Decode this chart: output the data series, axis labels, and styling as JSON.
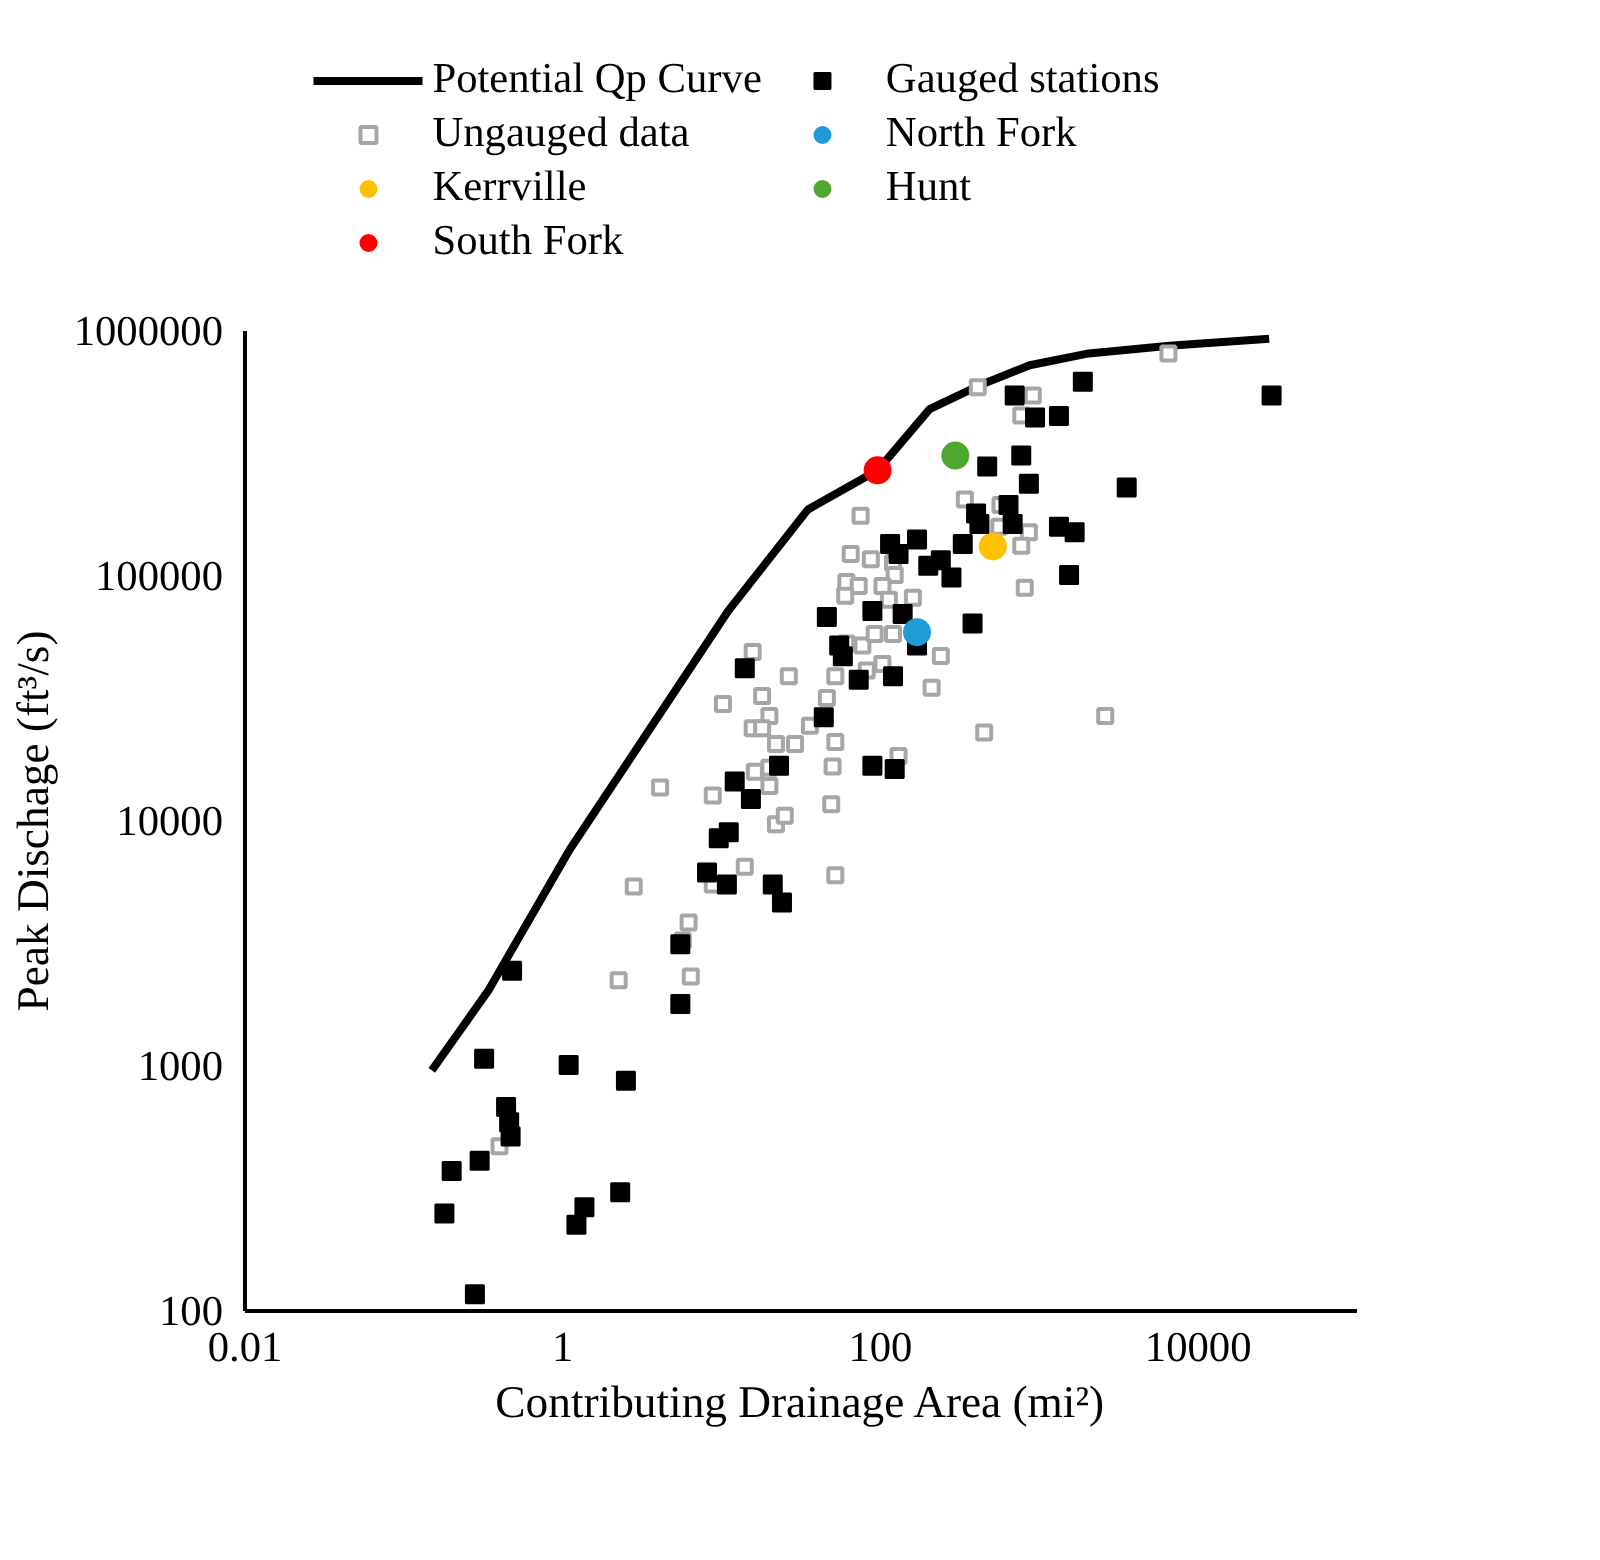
{
  "chart_data": {
    "type": "scatter",
    "xlabel": "Contributing Drainage Area (mi²)",
    "ylabel": "Peak Dischage (ft³/s)",
    "log": "xy",
    "xlim": [
      0.01,
      100000
    ],
    "ylim": [
      100,
      1000000
    ],
    "xticks": [
      0.01,
      1,
      100,
      10000
    ],
    "yticks": [
      100,
      1000,
      10000,
      100000,
      1000000
    ],
    "grid": false,
    "legend": "top",
    "series": [
      {
        "name": "Potential Qp Curve",
        "type": "line",
        "color": "#000000",
        "marker": "none",
        "line_style": "solid",
        "x": [
          0.15,
          0.34,
          1.1,
          3.5,
          11,
          35,
          96,
          204,
          420,
          870,
          2050,
          6600,
          28000
        ],
        "values": [
          960,
          2030,
          7600,
          23500,
          72000,
          187000,
          270000,
          480000,
          600000,
          725000,
          810000,
          870000,
          930000
        ]
      },
      {
        "name": "Ungauged data",
        "color": "#a6a6a6",
        "marker": "square_hollow",
        "x": [
          10.2,
          18,
          20,
          15.7,
          18,
          22,
          29,
          36,
          46,
          52,
          16.2,
          20,
          20,
          8.8,
          4.1,
          50,
          49,
          22,
          25,
          14,
          8.8,
          52,
          2.8,
          6.2,
          5.7,
          6.4,
          2.25,
          0.4,
          130,
          410,
          910,
          770,
          6500,
          340,
          570,
          560,
          860,
          770,
          810,
          75,
          65,
          87,
          120,
          123,
          61,
          73,
          103,
          60,
          113,
          160,
          61,
          77,
          92,
          120,
          240,
          103,
          82,
          52,
          210,
          26.5,
          15.7,
          450,
          2600
        ],
        "values": [
          30000,
          32400,
          26800,
          23900,
          23900,
          20600,
          20600,
          24500,
          31800,
          21000,
          15900,
          16500,
          13900,
          12700,
          13700,
          16700,
          11700,
          9700,
          10500,
          6500,
          5500,
          6000,
          5400,
          3850,
          3250,
          2320,
          2240,
          470,
          18400,
          590000,
          546000,
          452000,
          810000,
          205000,
          195000,
          159000,
          151000,
          133000,
          89500,
          176000,
          123000,
          117000,
          113000,
          101000,
          94600,
          91000,
          91000,
          83000,
          80000,
          81500,
          53000,
          52000,
          58000,
          58000,
          47200,
          43700,
          41100,
          39000,
          35000,
          39000,
          49000,
          23000,
          26800
        ]
      },
      {
        "name": "Kerrville",
        "color": "#ffc000",
        "marker": "circle",
        "x": [
          510
        ],
        "values": [
          132000
        ]
      },
      {
        "name": "South Fork",
        "color": "#ff0000",
        "marker": "circle",
        "x": [
          96
        ],
        "values": [
          270000
        ]
      },
      {
        "name": "Gauged stations",
        "color": "#000000",
        "marker": "square",
        "x": [
          0.28,
          0.18,
          0.2,
          0.3,
          0.32,
          0.44,
          0.46,
          0.47,
          0.48,
          1.09,
          2.5,
          1.37,
          1.22,
          2.3,
          5.5,
          5.5,
          8.1,
          10.8,
          9.6,
          11.1,
          12.1,
          15.3,
          21,
          24,
          23,
          44,
          89,
          123,
          1880,
          700,
          940,
          1330,
          29000,
          770,
          470,
          860,
          3550,
          400,
          420,
          640,
          680,
          1330,
          1670,
          330,
          170,
          115,
          130,
          200,
          240,
          280,
          1540,
          89,
          138,
          170,
          380,
          55,
          58,
          120,
          14,
          46,
          73
        ],
        "values": [
          117,
          250,
          373,
          410,
          1070,
          680,
          590,
          515,
          2450,
          1010,
          870,
          265,
          225,
          305,
          1790,
          3140,
          6170,
          5500,
          8500,
          9000,
          14500,
          12300,
          5500,
          4650,
          16800,
          26500,
          16800,
          16300,
          620000,
          546000,
          444000,
          450000,
          546000,
          310000,
          280000,
          238000,
          230000,
          180000,
          163000,
          195000,
          163000,
          159000,
          151000,
          135000,
          141000,
          135000,
          123000,
          110000,
          116000,
          98500,
          101000,
          72000,
          70000,
          52000,
          64000,
          52000,
          47000,
          39000,
          42000,
          68000,
          37700
        ]
      },
      {
        "name": "North Fork",
        "color": "#1f9bd7",
        "marker": "circle",
        "x": [
          170
        ],
        "values": [
          59000
        ]
      },
      {
        "name": "Hunt",
        "color": "#4ea72e",
        "marker": "circle",
        "x": [
          296
        ],
        "values": [
          310000
        ]
      }
    ]
  }
}
